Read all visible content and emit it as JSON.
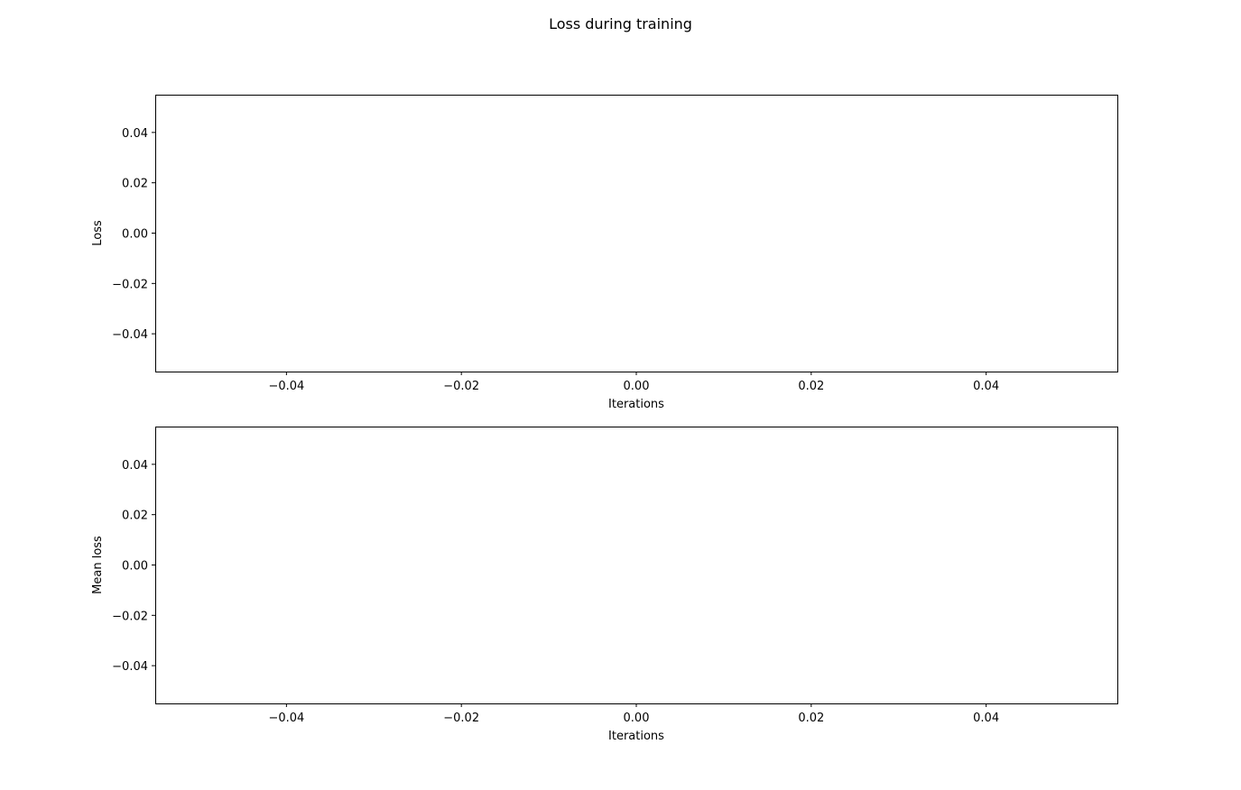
{
  "figure": {
    "title": "Loss during training"
  },
  "chart_data": [
    {
      "type": "line",
      "title": "",
      "xlabel": "Iterations",
      "ylabel": "Loss",
      "xlim": [
        -0.055,
        0.055
      ],
      "ylim": [
        -0.055,
        0.055
      ],
      "xticks": [
        -0.04,
        -0.02,
        0.0,
        0.02,
        0.04
      ],
      "yticks": [
        -0.04,
        -0.02,
        0.0,
        0.02,
        0.04
      ],
      "xtick_labels": [
        "−0.04",
        "−0.02",
        "0.00",
        "0.02",
        "0.04"
      ],
      "ytick_labels": [
        "−0.04",
        "−0.02",
        "0.00",
        "0.02",
        "0.04"
      ],
      "grid": false,
      "series": [
        {
          "x": [],
          "y": []
        }
      ]
    },
    {
      "type": "line",
      "title": "",
      "xlabel": "Iterations",
      "ylabel": "Mean loss",
      "xlim": [
        -0.055,
        0.055
      ],
      "ylim": [
        -0.055,
        0.055
      ],
      "xticks": [
        -0.04,
        -0.02,
        0.0,
        0.02,
        0.04
      ],
      "yticks": [
        -0.04,
        -0.02,
        0.0,
        0.02,
        0.04
      ],
      "xtick_labels": [
        "−0.04",
        "−0.02",
        "0.00",
        "0.02",
        "0.04"
      ],
      "ytick_labels": [
        "−0.04",
        "−0.02",
        "0.00",
        "0.02",
        "0.04"
      ],
      "grid": false,
      "series": [
        {
          "x": [],
          "y": []
        }
      ]
    }
  ]
}
